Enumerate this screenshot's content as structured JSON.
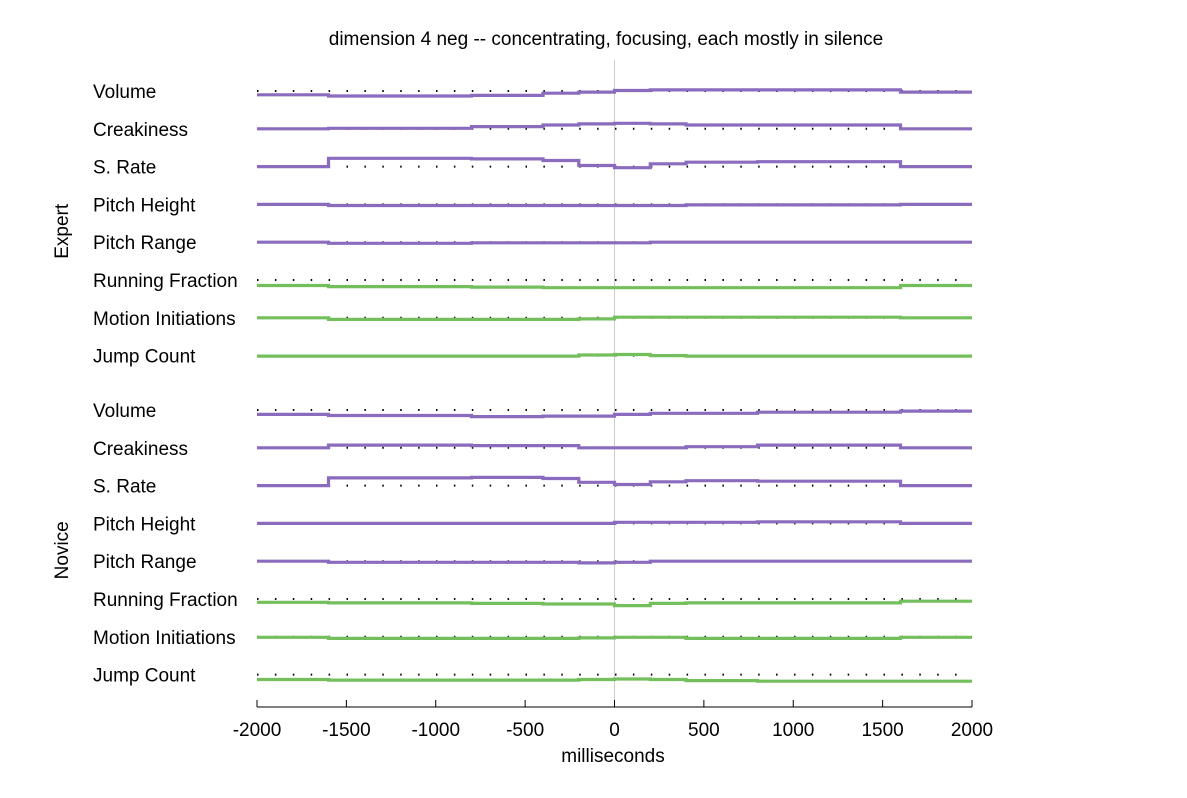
{
  "chart_data": {
    "type": "line",
    "title": "dimension 4 neg -- concentrating, focusing, each mostly in silence",
    "xlabel": "milliseconds",
    "ylabel": "",
    "xlim": [
      -2000,
      2000
    ],
    "xticks": [
      -2000,
      -1500,
      -1000,
      -500,
      0,
      500,
      1000,
      1500,
      2000
    ],
    "grid": false,
    "colors": {
      "prosody": "#8a6bbe",
      "motion": "#73bf5c",
      "baseline_dots": "#000000",
      "zero_line": "#cccccc"
    },
    "bin_edges": [
      -2000,
      -1600,
      -800,
      -400,
      -200,
      0,
      200,
      400,
      800,
      1600,
      2000
    ],
    "groups": [
      {
        "name": "Expert",
        "features": [
          {
            "name": "Volume",
            "kind": "prosody",
            "values": [
              -0.35,
              -0.45,
              -0.4,
              -0.2,
              -0.1,
              0.05,
              0.1,
              0.1,
              0.1,
              -0.1
            ]
          },
          {
            "name": "Creakiness",
            "kind": "prosody",
            "values": [
              0,
              0.05,
              0.2,
              0.35,
              0.45,
              0.5,
              0.45,
              0.35,
              0.35,
              0
            ]
          },
          {
            "name": "S. Rate",
            "kind": "prosody",
            "values": [
              0,
              0.75,
              0.7,
              0.55,
              0.1,
              -0.1,
              0.25,
              0.4,
              0.45,
              0
            ]
          },
          {
            "name": "Pitch Height",
            "kind": "prosody",
            "values": [
              0,
              -0.1,
              -0.1,
              -0.1,
              -0.1,
              -0.1,
              -0.1,
              -0.05,
              -0.05,
              0
            ]
          },
          {
            "name": "Pitch Range",
            "kind": "prosody",
            "values": [
              0,
              -0.1,
              -0.05,
              -0.05,
              -0.05,
              -0.05,
              0,
              0,
              0,
              0
            ]
          },
          {
            "name": "Running Fraction",
            "kind": "motion",
            "values": [
              -0.5,
              -0.6,
              -0.65,
              -0.7,
              -0.7,
              -0.7,
              -0.7,
              -0.7,
              -0.7,
              -0.5
            ]
          },
          {
            "name": "Motion Initiations",
            "kind": "motion",
            "values": [
              0,
              -0.15,
              -0.15,
              -0.15,
              -0.1,
              0.05,
              0.05,
              0.05,
              0.05,
              0
            ]
          },
          {
            "name": "Jump Count",
            "kind": "motion",
            "values": [
              -0.05,
              -0.05,
              -0.05,
              -0.05,
              0.05,
              0.1,
              0,
              -0.05,
              -0.05,
              -0.05
            ]
          }
        ]
      },
      {
        "name": "Novice",
        "features": [
          {
            "name": "Volume",
            "kind": "prosody",
            "values": [
              -0.4,
              -0.5,
              -0.6,
              -0.55,
              -0.55,
              -0.4,
              -0.3,
              -0.3,
              -0.2,
              -0.1
            ]
          },
          {
            "name": "Creakiness",
            "kind": "prosody",
            "values": [
              0,
              0.25,
              0.2,
              0.2,
              0,
              0,
              0,
              0.1,
              0.25,
              0
            ]
          },
          {
            "name": "S. Rate",
            "kind": "prosody",
            "values": [
              0,
              0.7,
              0.75,
              0.65,
              0.3,
              0.1,
              0.35,
              0.45,
              0.4,
              0
            ]
          },
          {
            "name": "Pitch Height",
            "kind": "prosody",
            "values": [
              0,
              0,
              0,
              0,
              0,
              0.1,
              0.1,
              0.1,
              0.15,
              0
            ]
          },
          {
            "name": "Pitch Range",
            "kind": "prosody",
            "values": [
              0,
              -0.1,
              -0.1,
              -0.1,
              -0.15,
              -0.1,
              0,
              0,
              0,
              0
            ]
          },
          {
            "name": "Running Fraction",
            "kind": "motion",
            "values": [
              -0.3,
              -0.35,
              -0.4,
              -0.45,
              -0.45,
              -0.6,
              -0.4,
              -0.35,
              -0.35,
              -0.2
            ]
          },
          {
            "name": "Motion Initiations",
            "kind": "motion",
            "values": [
              -0.05,
              -0.15,
              -0.15,
              -0.15,
              -0.1,
              -0.05,
              -0.05,
              -0.15,
              -0.15,
              -0.05
            ]
          },
          {
            "name": "Jump Count",
            "kind": "motion",
            "values": [
              -0.45,
              -0.5,
              -0.5,
              -0.5,
              -0.45,
              -0.4,
              -0.45,
              -0.55,
              -0.6,
              -0.6
            ]
          }
        ]
      }
    ]
  }
}
